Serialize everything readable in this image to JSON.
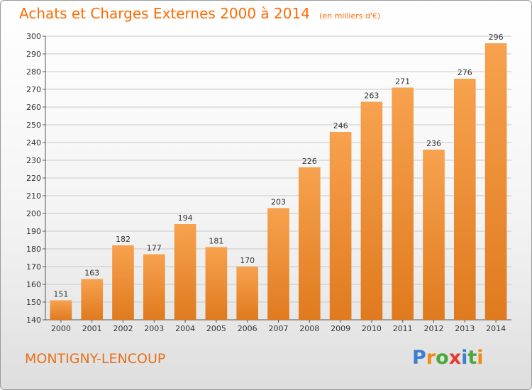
{
  "title": "Achats et Charges Externes 2000 à 2014",
  "subtitle": "(en milliers d'€)",
  "commune": "MONTIGNY-LENCOUP",
  "brand": "Proxiti",
  "colors": {
    "accent": "#ff6a00",
    "bar_light": "#f7a24f",
    "bar_dark": "#e07a1e",
    "grid": "#c8c8c8"
  },
  "chart_data": {
    "type": "bar",
    "title": "Achats et Charges Externes 2000 à 2014",
    "subtitle": "(en milliers d'€)",
    "categories": [
      "2000",
      "2001",
      "2002",
      "2003",
      "2004",
      "2005",
      "2006",
      "2007",
      "2008",
      "2009",
      "2010",
      "2011",
      "2012",
      "2013",
      "2014"
    ],
    "values": [
      151,
      163,
      182,
      177,
      194,
      181,
      170,
      203,
      226,
      246,
      263,
      271,
      236,
      276,
      296
    ],
    "ylim": [
      140,
      300
    ],
    "yticks": [
      140,
      150,
      160,
      170,
      180,
      190,
      200,
      210,
      220,
      230,
      240,
      250,
      260,
      270,
      280,
      290,
      300
    ],
    "grid": true,
    "data_labels": true
  }
}
